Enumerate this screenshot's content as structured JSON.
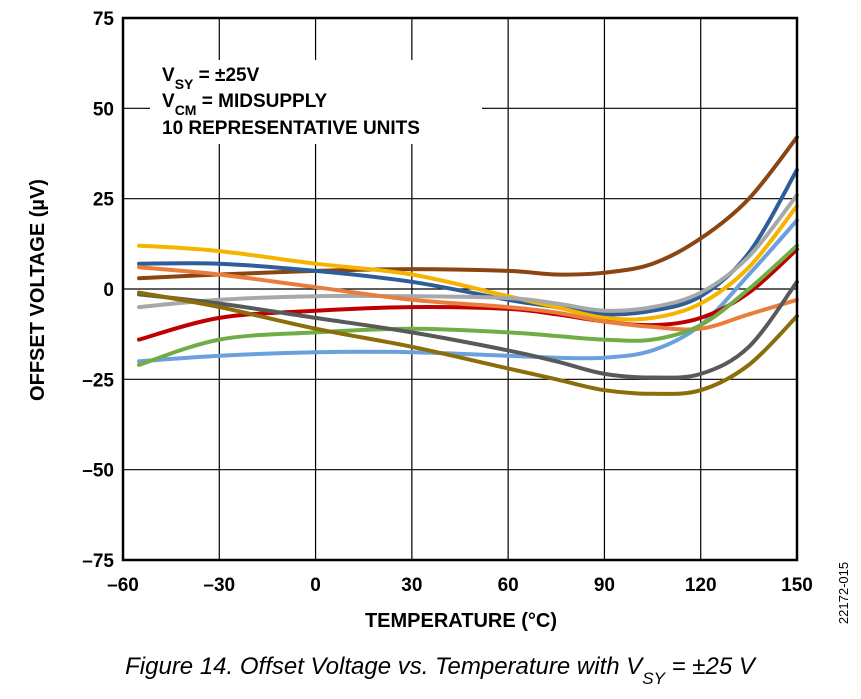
{
  "chart_data": {
    "type": "line",
    "title": "",
    "xlabel": "TEMPERATURE (°C)",
    "ylabel": "OFFSET VOLTAGE (µV)",
    "xlim": [
      -60,
      150
    ],
    "ylim": [
      -75,
      75
    ],
    "xticks": [
      -60,
      -30,
      0,
      30,
      60,
      90,
      120,
      150
    ],
    "yticks": [
      -75,
      -50,
      -25,
      0,
      25,
      50,
      75
    ],
    "xtick_labels": [
      "–60",
      "–30",
      "0",
      "30",
      "60",
      "90",
      "120",
      "150"
    ],
    "ytick_labels": [
      "–75",
      "–50",
      "–25",
      "0",
      "25",
      "50",
      "75"
    ],
    "grid": true,
    "annotation": {
      "line1_main": "V",
      "line1_sub": "SY",
      "line1_rest": " = ±25V",
      "line2_main": "V",
      "line2_sub": "CM",
      "line2_rest": " = MIDSUPPLY",
      "line3": "10 REPRESENTATIVE UNITS"
    },
    "series": [
      {
        "color": "#8B4513",
        "x": [
          -55,
          -30,
          0,
          30,
          60,
          75,
          90,
          105,
          120,
          135,
          150
        ],
        "y": [
          3,
          4,
          5,
          5.5,
          5,
          4,
          4.5,
          7,
          14,
          25,
          42
        ]
      },
      {
        "color": "#2E5E9A",
        "x": [
          -55,
          -30,
          0,
          30,
          60,
          75,
          90,
          105,
          120,
          135,
          150
        ],
        "y": [
          7,
          7,
          5,
          2,
          -3,
          -5,
          -7,
          -6,
          -2,
          10,
          33
        ]
      },
      {
        "color": "#F5B400",
        "x": [
          -55,
          -30,
          0,
          30,
          60,
          75,
          90,
          105,
          120,
          135,
          150
        ],
        "y": [
          12,
          10.5,
          7,
          4,
          -2,
          -5,
          -8,
          -8,
          -4,
          6,
          23
        ]
      },
      {
        "color": "#A8A8A8",
        "x": [
          -55,
          -30,
          0,
          30,
          60,
          75,
          90,
          105,
          120,
          135,
          150
        ],
        "y": [
          -5,
          -3,
          -2,
          -2,
          -2.5,
          -4,
          -6,
          -5,
          -1,
          9,
          26
        ]
      },
      {
        "color": "#6AA0DC",
        "x": [
          -55,
          -30,
          0,
          30,
          60,
          75,
          90,
          105,
          120,
          135,
          150
        ],
        "y": [
          -20,
          -18.5,
          -17.5,
          -17.5,
          -18.5,
          -19,
          -19,
          -17,
          -10,
          4,
          19
        ]
      },
      {
        "color": "#C00000",
        "x": [
          -55,
          -30,
          0,
          30,
          60,
          75,
          90,
          105,
          120,
          135,
          150
        ],
        "y": [
          -14,
          -8,
          -6,
          -5,
          -5.5,
          -7,
          -9,
          -10,
          -8,
          -1,
          11
        ]
      },
      {
        "color": "#E87D3E",
        "x": [
          -55,
          -30,
          0,
          30,
          60,
          75,
          90,
          105,
          120,
          135,
          150
        ],
        "y": [
          6,
          4,
          0.5,
          -3,
          -5,
          -6.5,
          -9,
          -10.5,
          -11,
          -7,
          -3
        ]
      },
      {
        "color": "#70AD47",
        "x": [
          -55,
          -30,
          0,
          30,
          60,
          75,
          90,
          105,
          120,
          135,
          150
        ],
        "y": [
          -21,
          -14,
          -12,
          -11,
          -12,
          -13,
          -14,
          -14,
          -10,
          0,
          12
        ]
      },
      {
        "color": "#595959",
        "x": [
          -55,
          -30,
          0,
          30,
          60,
          75,
          90,
          105,
          120,
          135,
          150
        ],
        "y": [
          -1.5,
          -4,
          -8,
          -12,
          -17,
          -20,
          -23.5,
          -24.5,
          -23.5,
          -16,
          2
        ]
      },
      {
        "color": "#8B6D0A",
        "x": [
          -55,
          -30,
          0,
          30,
          60,
          75,
          90,
          105,
          120,
          135,
          150
        ],
        "y": [
          -1,
          -5,
          -11,
          -16,
          -22,
          -25,
          -28,
          -29,
          -28,
          -21,
          -7.5
        ]
      }
    ]
  },
  "caption": {
    "main": "Figure 14. Offset Voltage vs. Temperature with V",
    "sub": "SY",
    "rest": " = ±25 V"
  },
  "doc_id": "22172-015"
}
